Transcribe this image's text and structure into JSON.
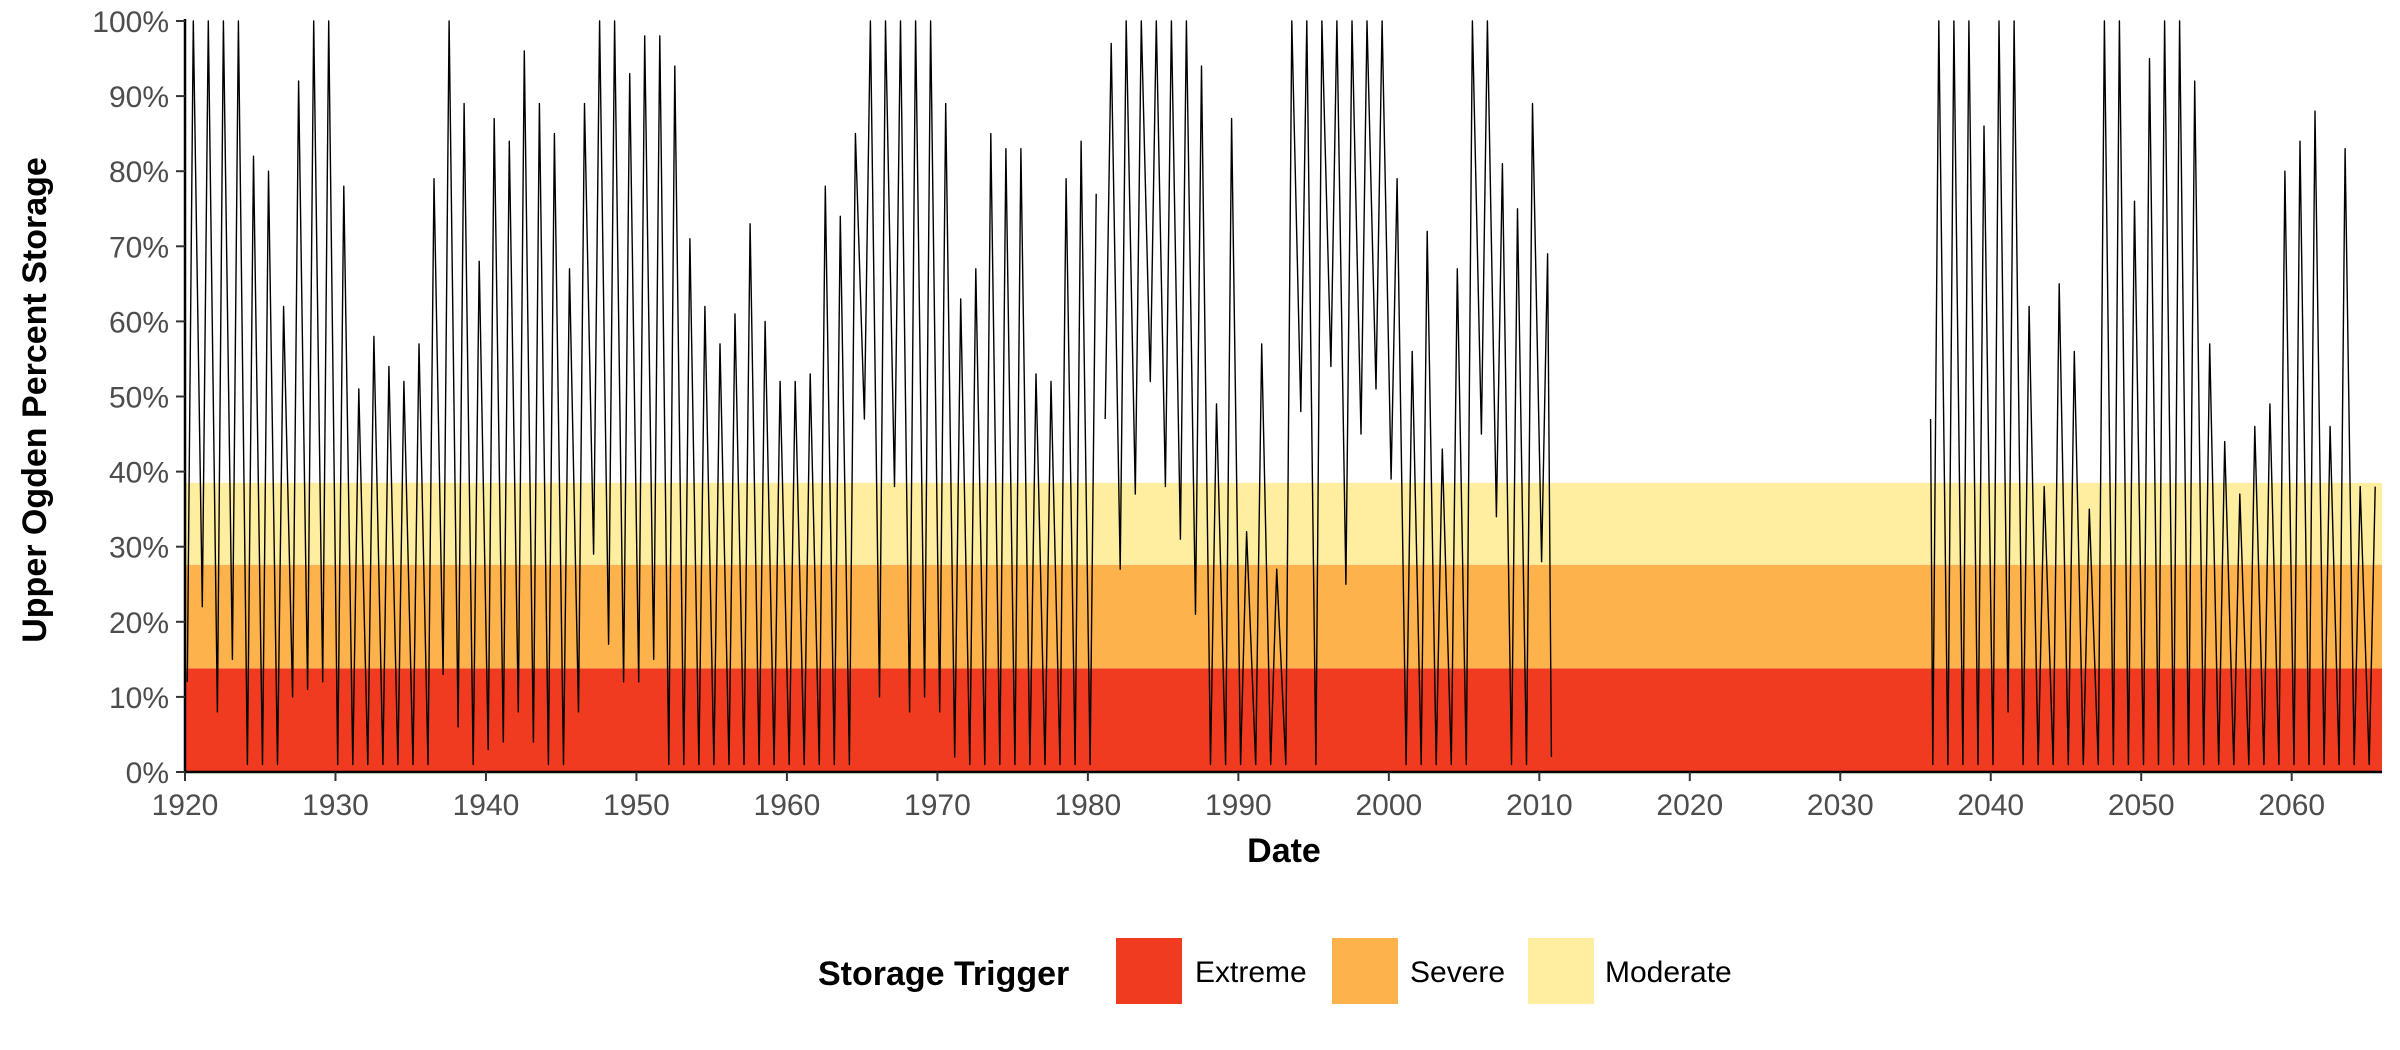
{
  "chart_data": {
    "type": "line",
    "xlabel": "Date",
    "ylabel": "Upper Ogden Percent Storage",
    "xlim": [
      1920,
      2066
    ],
    "ylim": [
      0,
      100
    ],
    "x_ticks": [
      1920,
      1930,
      1940,
      1950,
      1960,
      1970,
      1980,
      1990,
      2000,
      2010,
      2020,
      2030,
      2040,
      2050,
      2060
    ],
    "x_tick_labels": [
      "1920",
      "1930",
      "1940",
      "1950",
      "1960",
      "1970",
      "1980",
      "1990",
      "2000",
      "2010",
      "2020",
      "2030",
      "2040",
      "2050",
      "2060"
    ],
    "y_ticks": [
      0,
      10,
      20,
      30,
      40,
      50,
      60,
      70,
      80,
      90,
      100
    ],
    "y_tick_labels": [
      "0%",
      "10%",
      "20%",
      "30%",
      "40%",
      "50%",
      "60%",
      "70%",
      "80%",
      "90%",
      "100%"
    ],
    "grid": false,
    "legend": {
      "title": "Storage Trigger",
      "position": "bottom",
      "items": [
        {
          "label": "Extreme",
          "color": "#f03b20"
        },
        {
          "label": "Severe",
          "color": "#feb24c"
        },
        {
          "label": "Moderate",
          "color": "#ffeda0"
        }
      ]
    },
    "bands": [
      {
        "name": "Extreme",
        "from": 0,
        "to": 13.8,
        "color": "#f03b20"
      },
      {
        "name": "Severe",
        "from": 13.8,
        "to": 27.6,
        "color": "#feb24c"
      },
      {
        "name": "Moderate",
        "from": 27.6,
        "to": 38.5,
        "color": "#ffeda0"
      }
    ],
    "line_color": "#000000",
    "series": [
      {
        "segment": 1,
        "annual_peaks": [
          [
            1920,
            100
          ],
          [
            1921,
            100
          ],
          [
            1922,
            100
          ],
          [
            1923,
            100
          ],
          [
            1924,
            82
          ],
          [
            1925,
            80
          ],
          [
            1926,
            62
          ],
          [
            1927,
            92
          ],
          [
            1928,
            100
          ],
          [
            1929,
            100
          ],
          [
            1930,
            78
          ],
          [
            1931,
            51
          ],
          [
            1932,
            58
          ],
          [
            1933,
            54
          ],
          [
            1934,
            52
          ],
          [
            1935,
            57
          ],
          [
            1936,
            79
          ],
          [
            1937,
            100
          ],
          [
            1938,
            89
          ],
          [
            1939,
            68
          ],
          [
            1940,
            87
          ],
          [
            1941,
            84
          ],
          [
            1942,
            96
          ],
          [
            1943,
            89
          ],
          [
            1944,
            85
          ],
          [
            1945,
            67
          ],
          [
            1946,
            89
          ],
          [
            1947,
            100
          ],
          [
            1948,
            100
          ],
          [
            1949,
            93
          ],
          [
            1950,
            98
          ],
          [
            1951,
            98
          ],
          [
            1952,
            94
          ],
          [
            1953,
            71
          ],
          [
            1954,
            62
          ],
          [
            1955,
            57
          ],
          [
            1956,
            61
          ],
          [
            1957,
            73
          ],
          [
            1958,
            60
          ],
          [
            1959,
            52
          ],
          [
            1960,
            52
          ],
          [
            1961,
            53
          ],
          [
            1962,
            78
          ],
          [
            1963,
            74
          ],
          [
            1964,
            85
          ],
          [
            1965,
            100
          ],
          [
            1966,
            100
          ],
          [
            1967,
            100
          ],
          [
            1968,
            100
          ],
          [
            1969,
            100
          ],
          [
            1970,
            89
          ],
          [
            1971,
            63
          ],
          [
            1972,
            67
          ],
          [
            1973,
            85
          ],
          [
            1974,
            83
          ],
          [
            1975,
            83
          ],
          [
            1976,
            53
          ],
          [
            1977,
            52
          ],
          [
            1978,
            79
          ],
          [
            1979,
            84
          ],
          [
            1980,
            77
          ]
        ],
        "annual_troughs": [
          [
            1920,
            12
          ],
          [
            1921,
            22
          ],
          [
            1922,
            8
          ],
          [
            1923,
            15
          ],
          [
            1924,
            1
          ],
          [
            1925,
            1
          ],
          [
            1926,
            1
          ],
          [
            1927,
            10
          ],
          [
            1928,
            11
          ],
          [
            1929,
            12
          ],
          [
            1930,
            1
          ],
          [
            1931,
            1
          ],
          [
            1932,
            1
          ],
          [
            1933,
            1
          ],
          [
            1934,
            1
          ],
          [
            1935,
            1
          ],
          [
            1936,
            1
          ],
          [
            1937,
            13
          ],
          [
            1938,
            6
          ],
          [
            1939,
            1
          ],
          [
            1940,
            3
          ],
          [
            1941,
            4
          ],
          [
            1942,
            8
          ],
          [
            1943,
            4
          ],
          [
            1944,
            1
          ],
          [
            1945,
            1
          ],
          [
            1946,
            8
          ],
          [
            1947,
            29
          ],
          [
            1948,
            17
          ],
          [
            1949,
            12
          ],
          [
            1950,
            12
          ],
          [
            1951,
            15
          ],
          [
            1952,
            1
          ],
          [
            1953,
            1
          ],
          [
            1954,
            1
          ],
          [
            1955,
            1
          ],
          [
            1956,
            1
          ],
          [
            1957,
            1
          ],
          [
            1958,
            1
          ],
          [
            1959,
            1
          ],
          [
            1960,
            1
          ],
          [
            1961,
            1
          ],
          [
            1962,
            1
          ],
          [
            1963,
            1
          ],
          [
            1964,
            1
          ],
          [
            1965,
            47
          ],
          [
            1966,
            10
          ],
          [
            1967,
            38
          ],
          [
            1968,
            8
          ],
          [
            1969,
            10
          ],
          [
            1970,
            8
          ],
          [
            1971,
            2
          ],
          [
            1972,
            1
          ],
          [
            1973,
            1
          ],
          [
            1974,
            1
          ],
          [
            1975,
            1
          ],
          [
            1976,
            1
          ],
          [
            1977,
            1
          ],
          [
            1978,
            1
          ],
          [
            1979,
            1
          ],
          [
            1980,
            1
          ]
        ]
      },
      {
        "segment": 2,
        "annual_peaks": [
          [
            1981,
            97
          ],
          [
            1982,
            100
          ],
          [
            1983,
            100
          ],
          [
            1984,
            100
          ],
          [
            1985,
            100
          ],
          [
            1986,
            100
          ],
          [
            1987,
            94
          ],
          [
            1988,
            49
          ],
          [
            1989,
            87
          ],
          [
            1990,
            32
          ],
          [
            1991,
            57
          ],
          [
            1992,
            27
          ],
          [
            1993,
            100
          ],
          [
            1994,
            100
          ],
          [
            1995,
            100
          ],
          [
            1996,
            100
          ],
          [
            1997,
            100
          ],
          [
            1998,
            100
          ],
          [
            1999,
            100
          ],
          [
            2000,
            79
          ],
          [
            2001,
            56
          ],
          [
            2002,
            72
          ],
          [
            2003,
            43
          ],
          [
            2004,
            67
          ],
          [
            2005,
            100
          ],
          [
            2006,
            100
          ],
          [
            2007,
            81
          ],
          [
            2008,
            75
          ],
          [
            2009,
            89
          ],
          [
            2010,
            69
          ]
        ],
        "annual_troughs": [
          [
            1981,
            47
          ],
          [
            1982,
            27
          ],
          [
            1983,
            37
          ],
          [
            1984,
            52
          ],
          [
            1985,
            38
          ],
          [
            1986,
            31
          ],
          [
            1987,
            21
          ],
          [
            1988,
            1
          ],
          [
            1989,
            1
          ],
          [
            1990,
            1
          ],
          [
            1991,
            1
          ],
          [
            1992,
            1
          ],
          [
            1993,
            1
          ],
          [
            1994,
            48
          ],
          [
            1995,
            1
          ],
          [
            1996,
            54
          ],
          [
            1997,
            25
          ],
          [
            1998,
            45
          ],
          [
            1999,
            51
          ],
          [
            2000,
            39
          ],
          [
            2001,
            1
          ],
          [
            2002,
            1
          ],
          [
            2003,
            1
          ],
          [
            2004,
            1
          ],
          [
            2005,
            1
          ],
          [
            2006,
            45
          ],
          [
            2007,
            34
          ],
          [
            2008,
            1
          ],
          [
            2009,
            1
          ],
          [
            2010,
            28
          ]
        ],
        "end": [
          2010.8,
          2
        ]
      },
      {
        "segment": 3,
        "start": [
          2036,
          47
        ],
        "annual_peaks": [
          [
            2036,
            100
          ],
          [
            2037,
            100
          ],
          [
            2038,
            100
          ],
          [
            2039,
            86
          ],
          [
            2040,
            100
          ],
          [
            2041,
            100
          ],
          [
            2042,
            62
          ],
          [
            2043,
            38
          ],
          [
            2044,
            65
          ],
          [
            2045,
            56
          ],
          [
            2046,
            35
          ],
          [
            2047,
            100
          ],
          [
            2048,
            100
          ],
          [
            2049,
            76
          ],
          [
            2050,
            95
          ],
          [
            2051,
            100
          ],
          [
            2052,
            100
          ],
          [
            2053,
            92
          ],
          [
            2054,
            57
          ],
          [
            2055,
            44
          ],
          [
            2056,
            37
          ],
          [
            2057,
            46
          ],
          [
            2058,
            49
          ],
          [
            2059,
            80
          ],
          [
            2060,
            84
          ],
          [
            2061,
            88
          ],
          [
            2062,
            46
          ],
          [
            2063,
            83
          ],
          [
            2064,
            38
          ],
          [
            2065,
            38
          ]
        ],
        "annual_troughs": [
          [
            2036,
            1
          ],
          [
            2037,
            1
          ],
          [
            2038,
            1
          ],
          [
            2039,
            1
          ],
          [
            2040,
            1
          ],
          [
            2041,
            8
          ],
          [
            2042,
            1
          ],
          [
            2043,
            1
          ],
          [
            2044,
            1
          ],
          [
            2045,
            1
          ],
          [
            2046,
            1
          ],
          [
            2047,
            1
          ],
          [
            2048,
            1
          ],
          [
            2049,
            1
          ],
          [
            2050,
            1
          ],
          [
            2051,
            1
          ],
          [
            2052,
            1
          ],
          [
            2053,
            1
          ],
          [
            2054,
            1
          ],
          [
            2055,
            1
          ],
          [
            2056,
            1
          ],
          [
            2057,
            1
          ],
          [
            2058,
            1
          ],
          [
            2059,
            1
          ],
          [
            2060,
            1
          ],
          [
            2061,
            1
          ],
          [
            2062,
            1
          ],
          [
            2063,
            1
          ],
          [
            2064,
            1
          ],
          [
            2065,
            1
          ]
        ]
      }
    ]
  }
}
